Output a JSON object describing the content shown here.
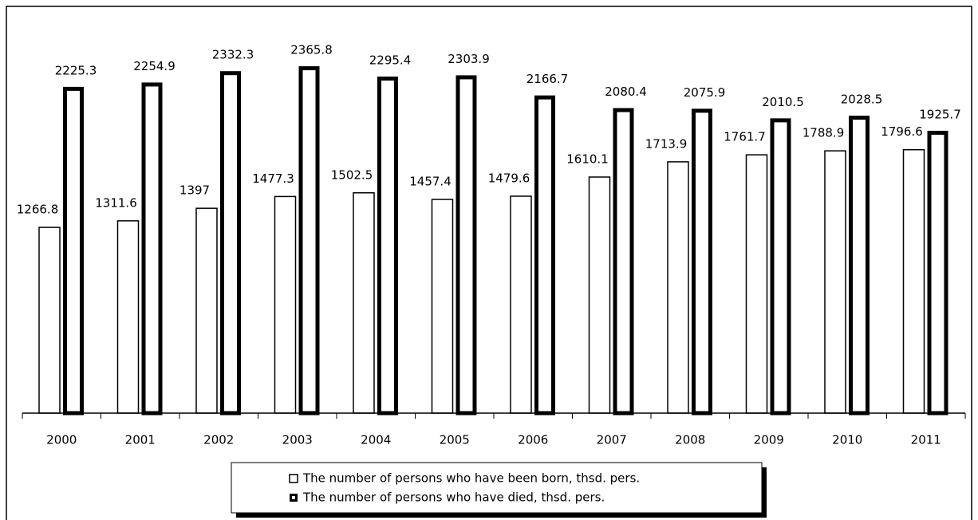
{
  "chart_data": {
    "type": "bar",
    "categories": [
      "2000",
      "2001",
      "2002",
      "2003",
      "2004",
      "2005",
      "2006",
      "2007",
      "2008",
      "2009",
      "2010",
      "2011"
    ],
    "series": [
      {
        "name": "The number of persons who have been born, thsd. pers.",
        "color": "#ffffff",
        "values": [
          1266.8,
          1311.6,
          1397,
          1477.3,
          1502.5,
          1457.4,
          1479.6,
          1610.1,
          1713.9,
          1761.7,
          1788.9,
          1796.6
        ]
      },
      {
        "name": "The number of persons who have died, thsd. pers.",
        "color": "#000000",
        "values": [
          2225.3,
          2254.9,
          2332.3,
          2365.8,
          2295.4,
          2303.9,
          2166.7,
          2080.4,
          2075.9,
          2010.5,
          2028.5,
          1925.7
        ]
      }
    ],
    "ylim": [
      0,
      2600
    ],
    "legend": "bottom"
  }
}
